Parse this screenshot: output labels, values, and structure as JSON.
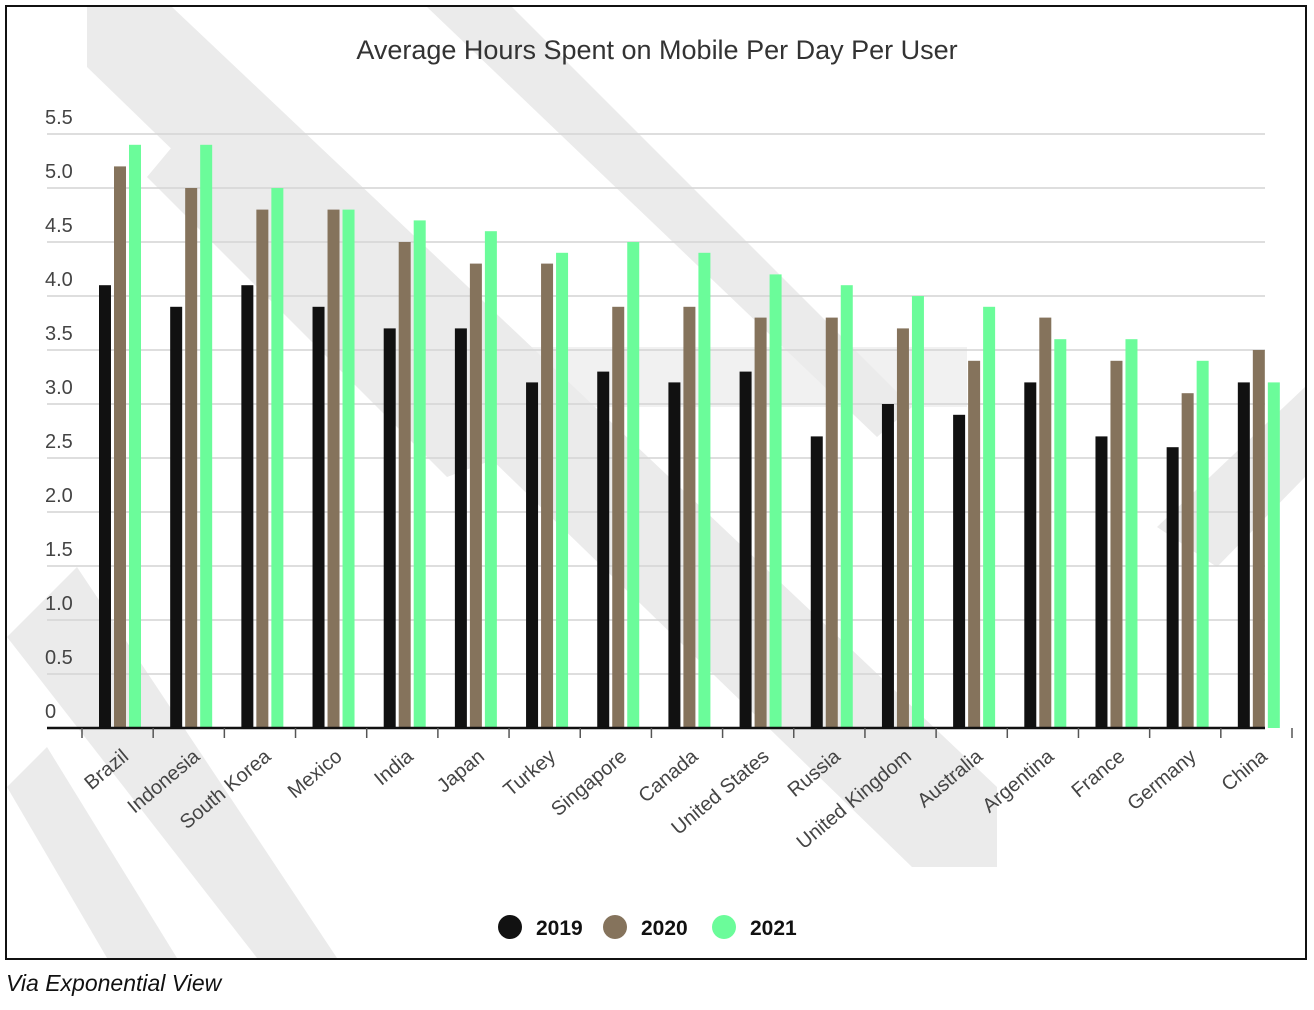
{
  "caption": "Via Exponential View",
  "chart_data": {
    "type": "bar",
    "title": "Average Hours Spent on Mobile Per Day Per User",
    "xlabel": "",
    "ylabel": "",
    "ylim": [
      0,
      5.5
    ],
    "yticks": [
      "0",
      "0.5",
      "1.0",
      "1.5",
      "2.0",
      "2.5",
      "3.0",
      "3.5",
      "4.0",
      "4.5",
      "5.0",
      "5.5"
    ],
    "grid": true,
    "legend_position": "bottom-center",
    "categories": [
      "Brazil",
      "Indonesia",
      "South Korea",
      "Mexico",
      "India",
      "Japan",
      "Turkey",
      "Singapore",
      "Canada",
      "United States",
      "Russia",
      "United Kingdom",
      "Australia",
      "Argentina",
      "France",
      "Germany",
      "China"
    ],
    "series": [
      {
        "name": "2019",
        "color": "#111111",
        "values": [
          4.1,
          3.9,
          4.1,
          3.9,
          3.7,
          3.7,
          3.2,
          3.3,
          3.2,
          3.3,
          2.7,
          3.0,
          2.9,
          3.2,
          2.7,
          2.6,
          3.2
        ]
      },
      {
        "name": "2020",
        "color": "#85735c",
        "values": [
          5.2,
          5.0,
          4.8,
          4.8,
          4.5,
          4.3,
          4.3,
          3.9,
          3.9,
          3.8,
          3.8,
          3.7,
          3.4,
          3.8,
          3.4,
          3.1,
          3.5
        ]
      },
      {
        "name": "2021",
        "color": "#6bfc9a",
        "values": [
          5.4,
          5.4,
          5.0,
          4.8,
          4.7,
          4.6,
          4.4,
          4.5,
          4.4,
          4.2,
          4.1,
          4.0,
          3.9,
          3.6,
          3.6,
          3.4,
          3.2
        ]
      }
    ]
  }
}
